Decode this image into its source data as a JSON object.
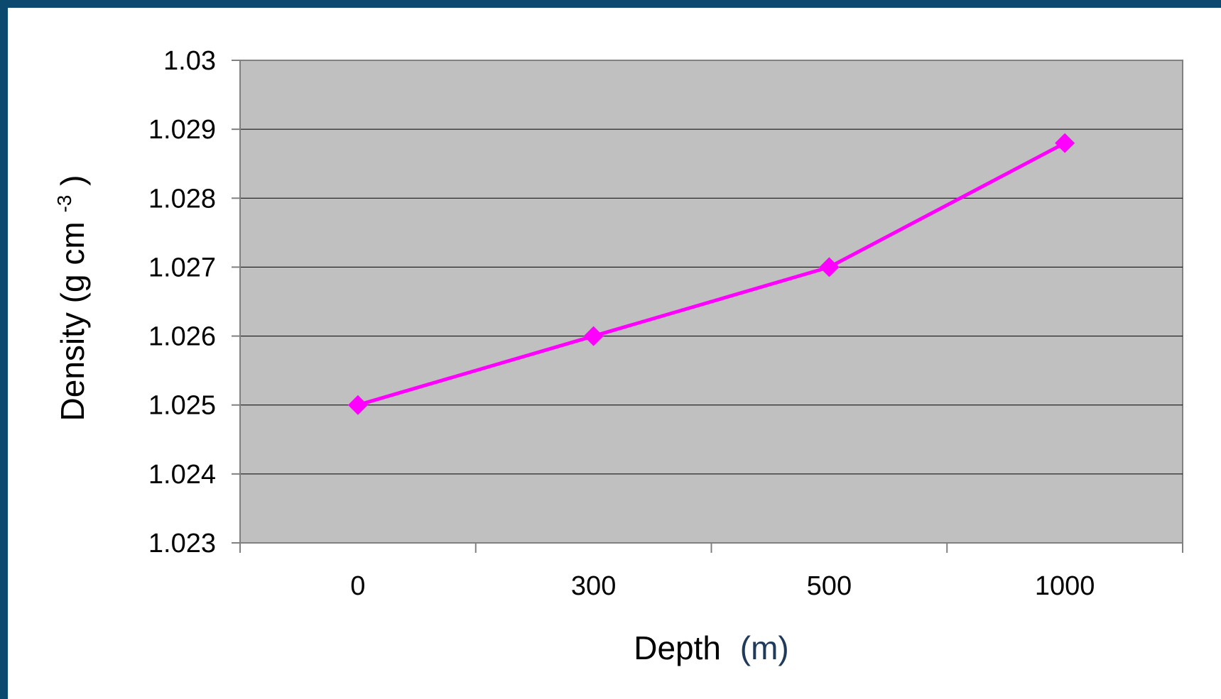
{
  "chart_data": {
    "type": "line",
    "categories": [
      "0",
      "300",
      "500",
      "1000"
    ],
    "series": [
      {
        "values": [
          1.025,
          1.026,
          1.027,
          1.0288
        ],
        "color": "#ff00ff",
        "marker": "diamond"
      }
    ],
    "xlabel": {
      "main": "Depth",
      "unit": "(m)",
      "unit_color": "#1f3a5a"
    },
    "ylabel": {
      "main": "Density (g cm",
      "superscript": "-3",
      "close": ")"
    },
    "ylim": [
      1.023,
      1.03
    ],
    "yticks": [
      "1.023",
      "1.024",
      "1.025",
      "1.026",
      "1.027",
      "1.028",
      "1.029",
      "1.03"
    ],
    "grid": true,
    "plot_background": "#c0c0c0",
    "legend": "none"
  },
  "colors": {
    "frame": "#0b4a6e",
    "slide_background": "#ffffff",
    "gridline": "#000000",
    "axis": "#808080"
  }
}
